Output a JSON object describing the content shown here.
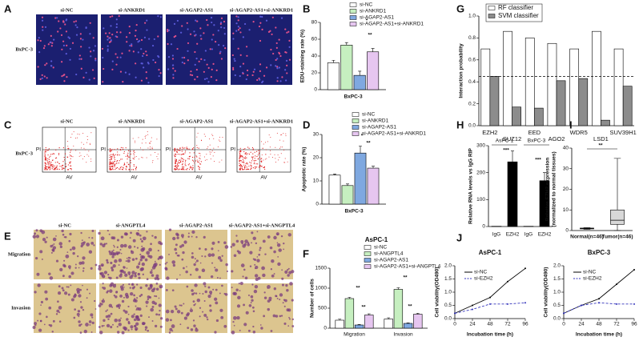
{
  "image_panels": [
    {
      "panel_label": "A",
      "columns": [
        "si-NC",
        "si-ANKRD1",
        "si-AGAP2-AS1",
        "si-AGAP2-AS1+si-ANKRD1"
      ],
      "rows": [
        "BxPC-3"
      ]
    },
    {
      "panel_label": "C",
      "columns": [
        "si-NC",
        "si-ANKRD1",
        "si-AGAP2-AS1",
        "si-AGAP2-AS1+si-ANKRD1"
      ],
      "rows": [
        "BxPC-3"
      ],
      "x_label": "AV",
      "y_label": "PI"
    },
    {
      "panel_label": "E",
      "columns": [
        "si-NC",
        "si-ANGPTL4",
        "si-AGAP2-AS1",
        "si-AGAP2-AS1+si-ANGPTL4"
      ],
      "rows": [
        "Migration",
        "Invasion"
      ]
    }
  ],
  "chart_data": [
    {
      "type": "bar",
      "panel_label": "B",
      "ylabel": "EDU-staining rate (%)",
      "categories": [
        "BxPC-3"
      ],
      "series": [
        {
          "name": "si-NC",
          "color": "#ffffff",
          "values": [
            32
          ],
          "errors": [
            3
          ]
        },
        {
          "name": "si-ANKRD1",
          "color": "#c6efc0",
          "values": [
            53
          ],
          "errors": [
            3
          ]
        },
        {
          "name": "si-AGAP2-AS1",
          "color": "#7fa8e0",
          "values": [
            17
          ],
          "errors": [
            5
          ]
        },
        {
          "name": "si-AGAP2-AS1+si-ANKRD1",
          "color": "#e6c6f0",
          "values": [
            45
          ],
          "errors": [
            4
          ]
        }
      ],
      "ylim": [
        0,
        80
      ],
      "yticks": [
        0,
        20,
        40,
        60,
        80
      ],
      "annotations": [
        "*",
        "**"
      ]
    },
    {
      "type": "bar",
      "panel_label": "D",
      "ylabel": "Apoptotic rate (%)",
      "categories": [
        "BxPC-3"
      ],
      "series": [
        {
          "name": "si-NC",
          "color": "#ffffff",
          "values": [
            12.5
          ],
          "errors": [
            0.5
          ]
        },
        {
          "name": "si-ANKRD1",
          "color": "#c6efc0",
          "values": [
            8
          ],
          "errors": [
            0.7
          ]
        },
        {
          "name": "si-AGAP2-AS1",
          "color": "#7fa8e0",
          "values": [
            22
          ],
          "errors": [
            3
          ]
        },
        {
          "name": "si-AGAP2-AS1+si-ANKRD1",
          "color": "#e6c6f0",
          "values": [
            15.5
          ],
          "errors": [
            0.8
          ]
        }
      ],
      "ylim": [
        0,
        30
      ],
      "yticks": [
        0,
        10,
        20,
        30
      ],
      "annotations": [
        "*",
        "**"
      ]
    },
    {
      "type": "bar",
      "panel_label": "F",
      "title": "AsPC-1",
      "ylabel": "Number of cells",
      "categories": [
        "Migration",
        "Invasion"
      ],
      "series": [
        {
          "name": "si-NC",
          "color": "#ffffff",
          "values": [
            200,
            230
          ],
          "errors": [
            25,
            30
          ]
        },
        {
          "name": "si-ANGPTL4",
          "color": "#c6efc0",
          "values": [
            740,
            970
          ],
          "errors": [
            30,
            40
          ]
        },
        {
          "name": "si-AGAP2-AS1",
          "color": "#7fa8e0",
          "values": [
            80,
            120
          ],
          "errors": [
            15,
            15
          ]
        },
        {
          "name": "si-AGAP2-AS1+si-ANGPTL4",
          "color": "#e6c6f0",
          "values": [
            330,
            350
          ],
          "errors": [
            30,
            25
          ]
        }
      ],
      "ylim": [
        0,
        1500
      ],
      "yticks": [
        0,
        500,
        1000,
        1500
      ],
      "annotations": [
        "**",
        "**",
        "**",
        "**"
      ]
    },
    {
      "type": "bar",
      "panel_label": "G",
      "ylabel": "Interaction probability",
      "categories": [
        "EZH2",
        "SUZ12",
        "EED",
        "AGO2",
        "WDR5",
        "LSD1",
        "SUV39H1"
      ],
      "series": [
        {
          "name": "RF classifier",
          "color": "#ffffff",
          "values": [
            0.7,
            0.86,
            0.8,
            0.75,
            0.7,
            0.86,
            0.7
          ]
        },
        {
          "name": "SVM classifier",
          "color": "#8c8c8c",
          "values": [
            0.45,
            0.17,
            0.16,
            0.41,
            0.43,
            0.05,
            0.36
          ]
        }
      ],
      "threshold": 0.45,
      "ylim": [
        0,
        1
      ],
      "yticks": [
        {
          "value": 0,
          "label": "0.0"
        },
        0.2,
        0.4,
        0.6,
        0.8,
        {
          "value": 1,
          "label": "1.0"
        }
      ]
    },
    {
      "type": "bar",
      "panel_label": "H",
      "ylabel": "Relative RNA levels vs IgG RIP",
      "categories": [
        "IgG",
        "EZH2",
        "IgG",
        "EZH2"
      ],
      "groups": [
        "AsPC-1",
        "BxPC-3"
      ],
      "series": [
        {
          "colors": [
            "#ffffff",
            "#000000",
            "#ffffff",
            "#000000"
          ],
          "values": [
            1,
            240,
            1,
            170
          ],
          "errors": [
            null,
            40,
            null,
            30
          ]
        }
      ],
      "ylim": [
        0,
        300
      ],
      "yticks": [
        0,
        100,
        200,
        300
      ],
      "annotations": [
        "***",
        "***"
      ]
    },
    {
      "type": "box",
      "panel_label": "I",
      "ylabel": [
        "Relative EZH2 expression",
        "(normalized to normal tissues)"
      ],
      "categories": [
        "Normal(n=46)",
        "Tumor(n=46)"
      ],
      "boxes": [
        {
          "min": 0.6,
          "q1": 0.8,
          "median": 1,
          "q3": 1.2,
          "max": 1.4
        },
        {
          "min": 0,
          "q1": 3,
          "median": 5,
          "q3": 10,
          "max": 35
        }
      ],
      "ylim": [
        0,
        40
      ],
      "yticks": [
        0,
        10,
        20,
        30,
        40
      ],
      "annotations": [
        "**"
      ]
    },
    {
      "type": "line",
      "panel_label": "J",
      "title": "AsPC-1",
      "xlabel": "Incubation time (h)",
      "ylabel": "Cell viability(OD490)",
      "x": [
        0,
        24,
        48,
        72,
        96
      ],
      "xlim": [
        0,
        96
      ],
      "xticks": [
        0,
        24,
        48,
        72,
        96
      ],
      "series": [
        {
          "name": "si-NC",
          "color": "#000000",
          "dash": false,
          "values": [
            0.2,
            0.5,
            0.8,
            1.4,
            1.9
          ]
        },
        {
          "name": "si-EZH2",
          "color": "#3333bb",
          "dash": true,
          "values": [
            0.2,
            0.35,
            0.55,
            0.55,
            0.6
          ]
        }
      ],
      "ylim": [
        0,
        2
      ],
      "yticks": [
        {
          "value": 0,
          "label": "0.0"
        },
        0.5,
        {
          "value": 1,
          "label": "1.0"
        },
        1.5,
        {
          "value": 2,
          "label": "2.0"
        }
      ]
    },
    {
      "type": "line",
      "title": "BxPC-3",
      "xlabel": "Incubation time (h)",
      "ylabel": "Cell viability(OD490)",
      "x": [
        0,
        24,
        48,
        72,
        96
      ],
      "xlim": [
        0,
        96
      ],
      "xticks": [
        0,
        24,
        48,
        72,
        96
      ],
      "series": [
        {
          "name": "si-NC",
          "color": "#000000",
          "dash": false,
          "values": [
            0.2,
            0.5,
            0.75,
            1.3,
            1.85
          ]
        },
        {
          "name": "si-EZH2",
          "color": "#3333bb",
          "dash": true,
          "values": [
            0.2,
            0.5,
            0.6,
            0.55,
            0.55
          ]
        }
      ],
      "ylim": [
        0,
        2
      ],
      "yticks": [
        {
          "value": 0,
          "label": "0.0"
        },
        0.5,
        {
          "value": 1,
          "label": "1.0"
        },
        1.5,
        {
          "value": 2,
          "label": "2.0"
        }
      ]
    }
  ]
}
